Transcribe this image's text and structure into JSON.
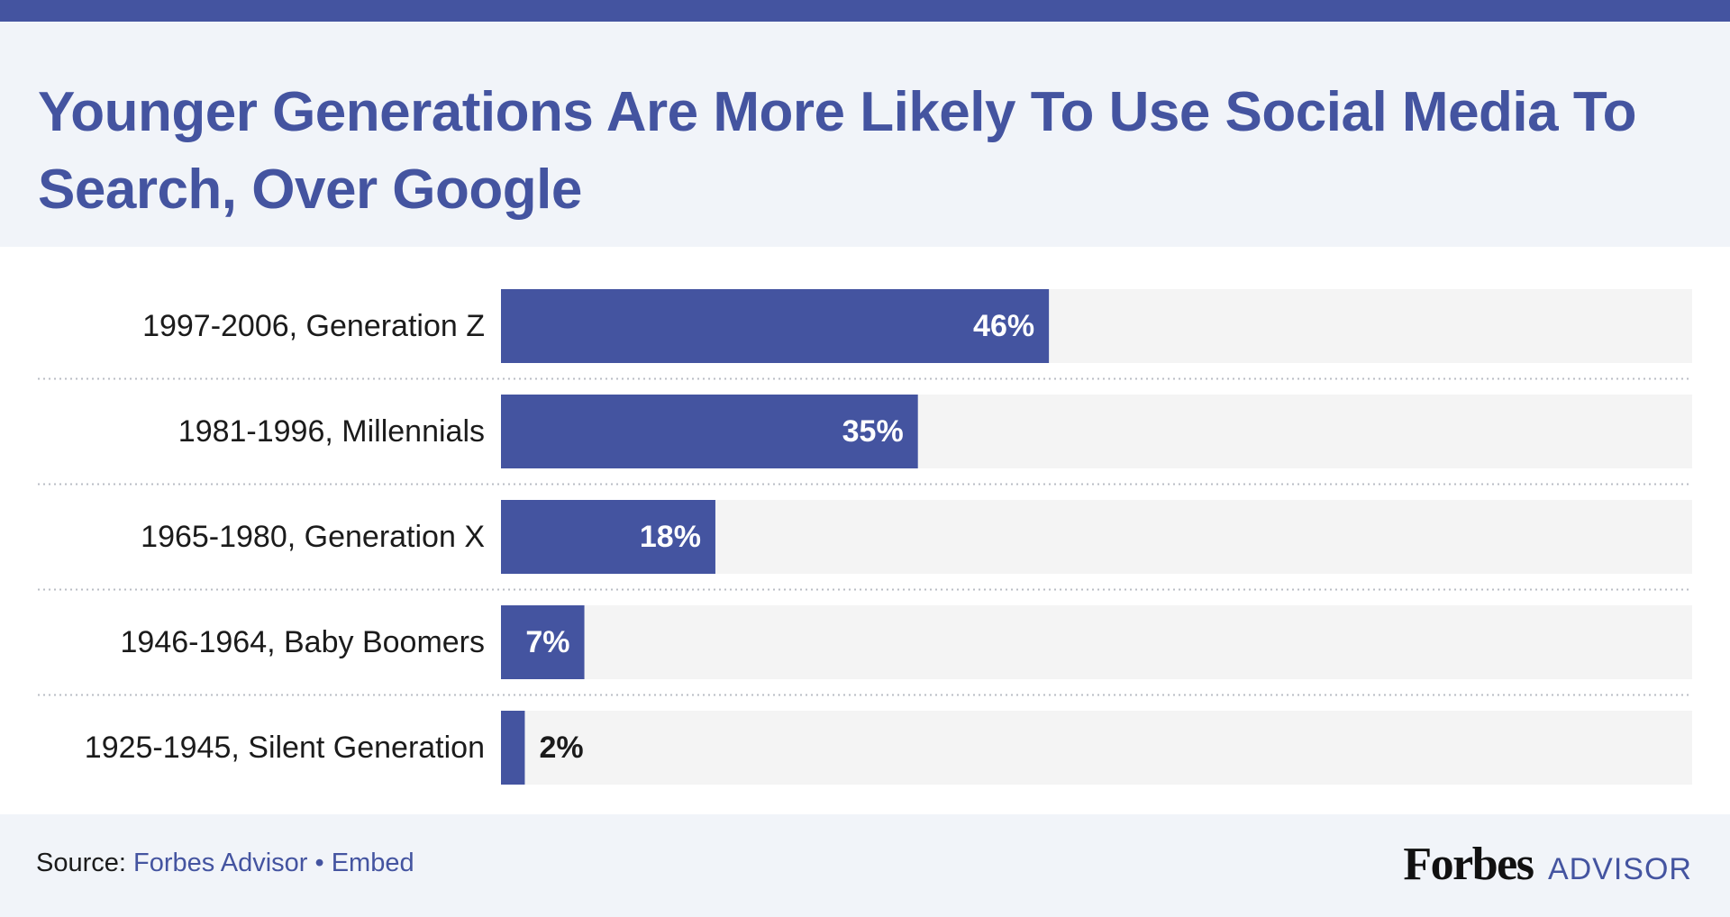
{
  "title": "Younger Generations Are More Likely To Use Social Media To Search, Over Google",
  "footer": {
    "source_prefix": "Source:",
    "source_name": "Forbes Advisor",
    "separator": "•",
    "embed_label": "Embed",
    "logo_wordmark": "Forbes",
    "logo_suffix": "ADVISOR"
  },
  "colors": {
    "accent": "#4454a0",
    "track": "#f4f4f4",
    "header_bg": "#f1f4f9",
    "panel_bg": "#ffffff",
    "label_text": "#1b1b1b"
  },
  "chart_data": {
    "type": "bar",
    "orientation": "horizontal",
    "categories": [
      "1997-2006, Generation Z",
      "1981-1996, Millennials",
      "1965-1980, Generation X",
      "1946-1964, Baby Boomers",
      "1925-1945, Silent Generation"
    ],
    "values": [
      46,
      35,
      18,
      7,
      2
    ],
    "value_labels": [
      "46%",
      "35%",
      "18%",
      "7%",
      "2%"
    ],
    "xlim": [
      0,
      100
    ],
    "unit": "%",
    "grid": false,
    "legend": "none"
  }
}
